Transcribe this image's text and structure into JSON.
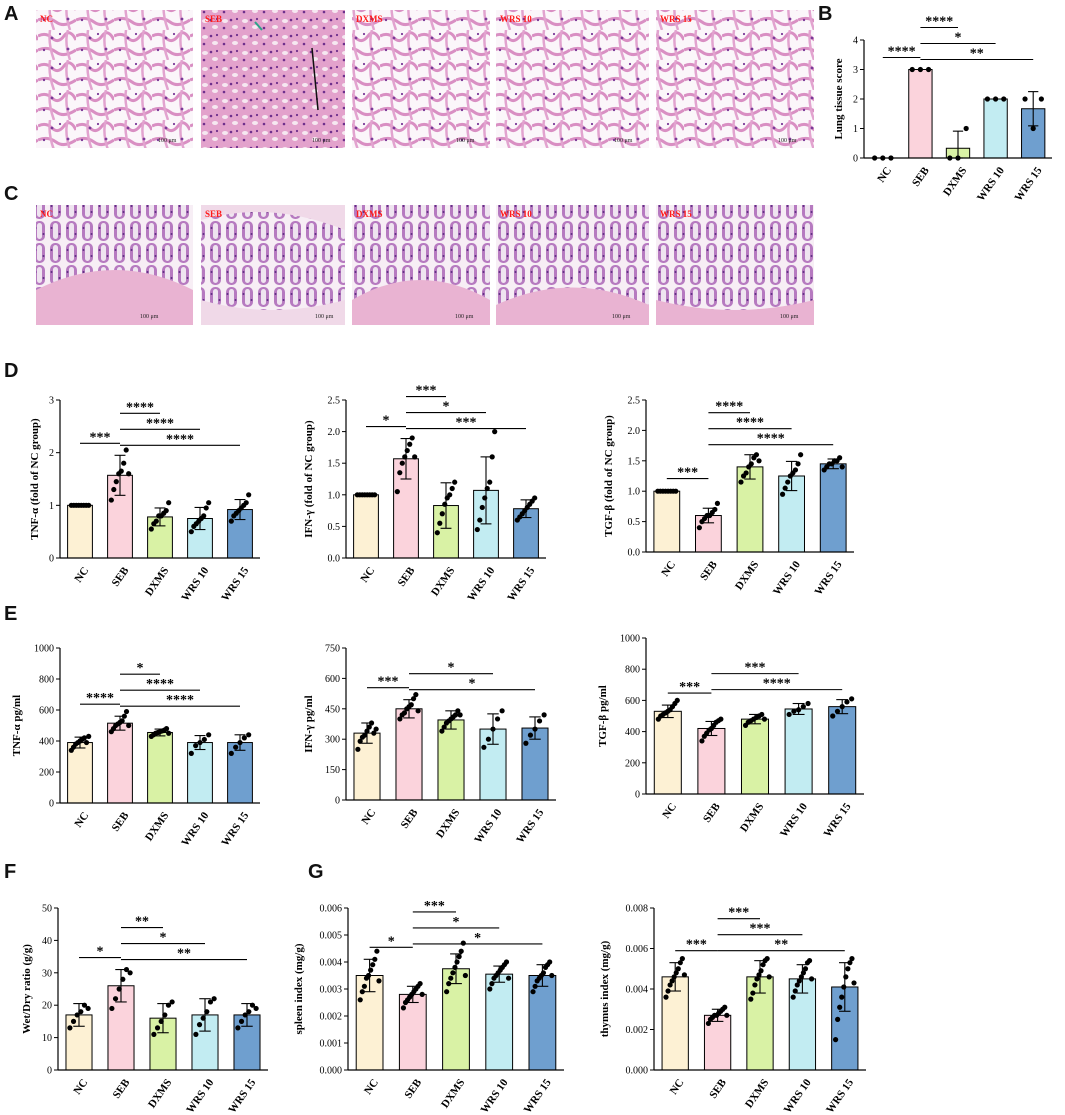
{
  "panel_labels": [
    "A",
    "B",
    "C",
    "D",
    "E",
    "F",
    "G"
  ],
  "micrographs": {
    "lung_labels": [
      "NC",
      "SEB",
      "DXMS",
      "WRS 10",
      "WRS 15"
    ],
    "colon_labels": [
      "NC",
      "SEB",
      "DXMS",
      "WRS 10",
      "WRS 15"
    ],
    "scale_text": "100 μm"
  },
  "colors": {
    "NC": "#fdf1d4",
    "SEB": "#fbd3dc",
    "DXMS": "#d9f2a5",
    "WRS 10": "#c2ecf2",
    "WRS 15": "#6f9fcf",
    "tissue": "#e7a9cf",
    "nuclei": "#8a3e9f"
  },
  "chart_data": [
    {
      "id": "B",
      "type": "bar",
      "categories": [
        "NC",
        "SEB",
        "DXMS",
        "WRS 10",
        "WRS 15"
      ],
      "values": [
        0,
        3,
        0.33,
        2,
        1.67
      ],
      "sd": [
        0,
        0,
        0.58,
        0,
        0.58
      ],
      "points": [
        [
          0,
          0,
          0
        ],
        [
          3,
          3,
          3
        ],
        [
          0,
          0,
          1
        ],
        [
          2,
          2,
          2
        ],
        [
          2,
          1,
          2
        ]
      ],
      "ylabel": "Lung tissue score",
      "ylim": [
        0,
        4
      ],
      "yticks": [
        0,
        1,
        2,
        3,
        4
      ],
      "ytick_labels": [
        "0",
        "1",
        "2",
        "3",
        "4"
      ],
      "significance": [
        {
          "from": "NC",
          "to": "SEB",
          "label": "****"
        },
        {
          "from": "SEB",
          "to": "DXMS",
          "label": "****"
        },
        {
          "from": "SEB",
          "to": "WRS 10",
          "label": "*"
        },
        {
          "from": "SEB",
          "to": "WRS 15",
          "label": "**"
        }
      ]
    },
    {
      "id": "D1",
      "type": "bar",
      "categories": [
        "NC",
        "SEB",
        "DXMS",
        "WRS 10",
        "WRS 15"
      ],
      "values": [
        1.0,
        1.57,
        0.78,
        0.75,
        0.92
      ],
      "sd": [
        0.02,
        0.38,
        0.17,
        0.21,
        0.19
      ],
      "points": [
        [
          1,
          1,
          1,
          1,
          1,
          1,
          1,
          1
        ],
        [
          1.1,
          1.3,
          1.45,
          1.6,
          1.65,
          1.8,
          2.05,
          1.6
        ],
        [
          0.55,
          0.65,
          0.7,
          0.8,
          0.8,
          0.85,
          0.9,
          1.05
        ],
        [
          0.5,
          0.6,
          0.65,
          0.7,
          0.75,
          0.8,
          0.95,
          1.05
        ],
        [
          0.7,
          0.8,
          0.85,
          0.9,
          0.95,
          1.0,
          1.05,
          1.2
        ]
      ],
      "ylabel": "TNF-α (fold of NC group)",
      "ylim": [
        0,
        3
      ],
      "yticks": [
        0,
        1,
        2,
        3
      ],
      "ytick_labels": [
        "0",
        "1",
        "2",
        "3"
      ],
      "significance": [
        {
          "from": "NC",
          "to": "SEB",
          "label": "***"
        },
        {
          "from": "SEB",
          "to": "DXMS",
          "label": "****"
        },
        {
          "from": "SEB",
          "to": "WRS 10",
          "label": "****"
        },
        {
          "from": "SEB",
          "to": "WRS 15",
          "label": "****"
        }
      ]
    },
    {
      "id": "D2",
      "type": "bar",
      "categories": [
        "NC",
        "SEB",
        "DXMS",
        "WRS 10",
        "WRS 15"
      ],
      "values": [
        1.0,
        1.57,
        0.83,
        1.07,
        0.78
      ],
      "sd": [
        0.01,
        0.32,
        0.36,
        0.53,
        0.14
      ],
      "points": [
        [
          1,
          1,
          1,
          1,
          1,
          1,
          1,
          1
        ],
        [
          1.05,
          1.35,
          1.5,
          1.6,
          1.7,
          1.8,
          1.9,
          1.6
        ],
        [
          0.4,
          0.55,
          0.7,
          0.85,
          0.95,
          1.0,
          1.1,
          1.2
        ],
        [
          0.45,
          0.6,
          0.8,
          0.95,
          1.1,
          1.2,
          1.6,
          2.0
        ],
        [
          0.6,
          0.65,
          0.7,
          0.75,
          0.8,
          0.85,
          0.9,
          0.95
        ]
      ],
      "ylabel": "IFN-γ (fold of NC group)",
      "ylim": [
        0,
        2.5
      ],
      "yticks": [
        0,
        0.5,
        1.0,
        1.5,
        2.0,
        2.5
      ],
      "ytick_labels": [
        "0.0",
        "0.5",
        "1.0",
        "1.5",
        "2.0",
        "2.5"
      ],
      "significance": [
        {
          "from": "NC",
          "to": "SEB",
          "label": "*"
        },
        {
          "from": "SEB",
          "to": "DXMS",
          "label": "***"
        },
        {
          "from": "SEB",
          "to": "WRS 10",
          "label": "*"
        },
        {
          "from": "SEB",
          "to": "WRS 15",
          "label": "***"
        }
      ]
    },
    {
      "id": "D3",
      "type": "bar",
      "categories": [
        "NC",
        "SEB",
        "DXMS",
        "WRS 10",
        "WRS 15"
      ],
      "values": [
        1.0,
        0.6,
        1.4,
        1.25,
        1.45
      ],
      "sd": [
        0.01,
        0.12,
        0.2,
        0.24,
        0.08
      ],
      "points": [
        [
          1,
          1,
          1,
          1,
          1,
          1,
          1,
          1
        ],
        [
          0.4,
          0.5,
          0.55,
          0.6,
          0.6,
          0.65,
          0.7,
          0.8
        ],
        [
          1.15,
          1.25,
          1.3,
          1.4,
          1.45,
          1.55,
          1.6,
          1.5
        ],
        [
          0.95,
          1.05,
          1.15,
          1.25,
          1.3,
          1.35,
          1.45,
          1.6
        ],
        [
          1.35,
          1.4,
          1.45,
          1.45,
          1.5,
          1.5,
          1.55,
          1.4
        ]
      ],
      "ylabel": "TGF-β (fold of NC group)",
      "ylim": [
        0,
        2.5
      ],
      "yticks": [
        0,
        0.5,
        1.0,
        1.5,
        2.0,
        2.5
      ],
      "ytick_labels": [
        "0.0",
        "0.5",
        "1.0",
        "1.5",
        "2.0",
        "2.5"
      ],
      "significance": [
        {
          "from": "NC",
          "to": "SEB",
          "label": "***"
        },
        {
          "from": "SEB",
          "to": "DXMS",
          "label": "****"
        },
        {
          "from": "SEB",
          "to": "WRS 10",
          "label": "****"
        },
        {
          "from": "SEB",
          "to": "WRS 15",
          "label": "****"
        }
      ]
    },
    {
      "id": "E1",
      "type": "bar",
      "categories": [
        "NC",
        "SEB",
        "DXMS",
        "WRS 10",
        "WRS 15"
      ],
      "values": [
        390,
        515,
        455,
        390,
        390
      ],
      "sd": [
        35,
        45,
        22,
        45,
        50
      ],
      "points": [
        [
          340,
          360,
          380,
          390,
          400,
          410,
          420,
          390,
          430
        ],
        [
          460,
          480,
          500,
          510,
          520,
          530,
          560,
          590,
          500
        ],
        [
          430,
          440,
          450,
          455,
          460,
          465,
          470,
          480,
          450
        ],
        [
          320,
          370,
          390,
          410,
          440
        ],
        [
          320,
          360,
          390,
          420,
          440
        ]
      ],
      "ylabel": "TNF-α pg/ml",
      "ylim": [
        0,
        1000
      ],
      "yticks": [
        0,
        200,
        400,
        600,
        800,
        1000
      ],
      "ytick_labels": [
        "0",
        "200",
        "400",
        "600",
        "800",
        "1000"
      ],
      "significance": [
        {
          "from": "NC",
          "to": "SEB",
          "label": "****"
        },
        {
          "from": "SEB",
          "to": "DXMS",
          "label": "*"
        },
        {
          "from": "SEB",
          "to": "WRS 10",
          "label": "****"
        },
        {
          "from": "SEB",
          "to": "WRS 15",
          "label": "****"
        }
      ]
    },
    {
      "id": "E2",
      "type": "bar",
      "categories": [
        "NC",
        "SEB",
        "DXMS",
        "WRS 10",
        "WRS 15"
      ],
      "values": [
        330,
        450,
        395,
        350,
        355
      ],
      "sd": [
        50,
        45,
        45,
        75,
        55
      ],
      "points": [
        [
          250,
          290,
          310,
          320,
          340,
          360,
          380,
          330,
          350
        ],
        [
          400,
          420,
          430,
          450,
          460,
          470,
          500,
          520,
          440
        ],
        [
          340,
          360,
          380,
          390,
          400,
          410,
          420,
          440,
          420
        ],
        [
          260,
          300,
          350,
          400,
          440
        ],
        [
          280,
          320,
          350,
          390,
          420
        ]
      ],
      "ylabel": "IFN-γ pg/ml",
      "ylim": [
        0,
        750
      ],
      "yticks": [
        0,
        150,
        300,
        450,
        600,
        750
      ],
      "ytick_labels": [
        "0",
        "150",
        "300",
        "450",
        "600",
        "750"
      ],
      "significance": [
        {
          "from": "NC",
          "to": "SEB",
          "label": "***"
        },
        {
          "from": "SEB",
          "to": "WRS 10",
          "label": "*"
        },
        {
          "from": "SEB",
          "to": "WRS 15",
          "label": "*"
        }
      ]
    },
    {
      "id": "E3",
      "type": "bar",
      "categories": [
        "NC",
        "SEB",
        "DXMS",
        "WRS 10",
        "WRS 15"
      ],
      "values": [
        530,
        420,
        480,
        545,
        560
      ],
      "sd": [
        40,
        45,
        30,
        35,
        45
      ],
      "points": [
        [
          480,
          500,
          510,
          520,
          530,
          540,
          560,
          580,
          600
        ],
        [
          340,
          370,
          390,
          410,
          420,
          440,
          460,
          470,
          480
        ],
        [
          440,
          460,
          470,
          480,
          490,
          500,
          510,
          480
        ],
        [
          510,
          530,
          540,
          560,
          580
        ],
        [
          500,
          530,
          560,
          590,
          610
        ]
      ],
      "ylabel": "TGF-β pg/ml",
      "ylim": [
        0,
        1000
      ],
      "yticks": [
        0,
        200,
        400,
        600,
        800,
        1000
      ],
      "ytick_labels": [
        "0",
        "200",
        "400",
        "600",
        "800",
        "1000"
      ],
      "significance": [
        {
          "from": "NC",
          "to": "SEB",
          "label": "***"
        },
        {
          "from": "SEB",
          "to": "WRS 10",
          "label": "***"
        },
        {
          "from": "SEB",
          "to": "WRS 15",
          "label": "****"
        }
      ]
    },
    {
      "id": "F",
      "type": "bar",
      "categories": [
        "NC",
        "SEB",
        "DXMS",
        "WRS 10",
        "WRS 15"
      ],
      "values": [
        17,
        26,
        16,
        17,
        17
      ],
      "sd": [
        3.5,
        5,
        4.5,
        5,
        3.5
      ],
      "points": [
        [
          13,
          15,
          17,
          18,
          20,
          19
        ],
        [
          19,
          22,
          25,
          28,
          31,
          30
        ],
        [
          11,
          13,
          15,
          17,
          20,
          21
        ],
        [
          11,
          14,
          16,
          18,
          21,
          22
        ],
        [
          13,
          15,
          17,
          18,
          20,
          19
        ]
      ],
      "ylabel": "Wet/Dry ratio (g/g)",
      "ylim": [
        0,
        50
      ],
      "yticks": [
        0,
        10,
        20,
        30,
        40,
        50
      ],
      "ytick_labels": [
        "0",
        "10",
        "20",
        "30",
        "40",
        "50"
      ],
      "significance": [
        {
          "from": "NC",
          "to": "SEB",
          "label": "*"
        },
        {
          "from": "SEB",
          "to": "DXMS",
          "label": "**"
        },
        {
          "from": "SEB",
          "to": "WRS 10",
          "label": "*"
        },
        {
          "from": "SEB",
          "to": "WRS 15",
          "label": "**"
        }
      ]
    },
    {
      "id": "G1",
      "type": "bar",
      "categories": [
        "NC",
        "SEB",
        "DXMS",
        "WRS 10",
        "WRS 15"
      ],
      "values": [
        0.0035,
        0.0028,
        0.00375,
        0.00355,
        0.0035
      ],
      "sd": [
        0.0006,
        0.0003,
        0.00055,
        0.0003,
        0.0004
      ],
      "points": [
        [
          0.0026,
          0.0029,
          0.0031,
          0.0034,
          0.0035,
          0.0037,
          0.0039,
          0.0041,
          0.0044,
          0.0033
        ],
        [
          0.0023,
          0.0025,
          0.0026,
          0.0027,
          0.0028,
          0.0029,
          0.003,
          0.0031,
          0.0032,
          0.0028
        ],
        [
          0.0029,
          0.0032,
          0.0034,
          0.0036,
          0.0038,
          0.004,
          0.0042,
          0.0044,
          0.0047,
          0.0035
        ],
        [
          0.003,
          0.0032,
          0.0034,
          0.0035,
          0.0036,
          0.0037,
          0.0038,
          0.0039,
          0.004,
          0.0034
        ],
        [
          0.0029,
          0.0031,
          0.0033,
          0.0034,
          0.0035,
          0.0036,
          0.0038,
          0.0039,
          0.004,
          0.0035
        ]
      ],
      "ylabel": "spleen index (mg/g)",
      "ylim": [
        0,
        0.006
      ],
      "yticks": [
        0,
        0.001,
        0.002,
        0.003,
        0.004,
        0.005,
        0.006
      ],
      "ytick_labels": [
        "0.000",
        "0.001",
        "0.002",
        "0.003",
        "0.004",
        "0.005",
        "0.006"
      ],
      "significance": [
        {
          "from": "NC",
          "to": "SEB",
          "label": "*"
        },
        {
          "from": "SEB",
          "to": "DXMS",
          "label": "***"
        },
        {
          "from": "SEB",
          "to": "WRS 10",
          "label": "*"
        },
        {
          "from": "SEB",
          "to": "WRS 15",
          "label": "*"
        }
      ]
    },
    {
      "id": "G2",
      "type": "bar",
      "categories": [
        "NC",
        "SEB",
        "DXMS",
        "WRS 10",
        "WRS 15"
      ],
      "values": [
        0.0046,
        0.0027,
        0.0046,
        0.0045,
        0.0041
      ],
      "sd": [
        0.0007,
        0.0003,
        0.0008,
        0.0007,
        0.0012
      ],
      "points": [
        [
          0.0036,
          0.0039,
          0.0042,
          0.0044,
          0.0046,
          0.0048,
          0.005,
          0.0053,
          0.0055,
          0.0047
        ],
        [
          0.0023,
          0.0025,
          0.0026,
          0.0027,
          0.0027,
          0.0028,
          0.0029,
          0.003,
          0.0031,
          0.0027
        ],
        [
          0.0035,
          0.0038,
          0.0042,
          0.0045,
          0.0047,
          0.0049,
          0.0052,
          0.0054,
          0.0055,
          0.0046
        ],
        [
          0.0036,
          0.0039,
          0.0042,
          0.0044,
          0.0046,
          0.0048,
          0.005,
          0.0053,
          0.0054,
          0.0045
        ],
        [
          0.0015,
          0.0025,
          0.0031,
          0.0036,
          0.0041,
          0.0046,
          0.005,
          0.0053,
          0.0055,
          0.0043
        ]
      ],
      "ylabel": "thymus index (mg/g)",
      "ylim": [
        0,
        0.008
      ],
      "yticks": [
        0,
        0.002,
        0.004,
        0.006,
        0.008
      ],
      "ytick_labels": [
        "0.000",
        "0.002",
        "0.004",
        "0.006",
        "0.008"
      ],
      "significance": [
        {
          "from": "NC",
          "to": "SEB",
          "label": "***"
        },
        {
          "from": "SEB",
          "to": "DXMS",
          "label": "***"
        },
        {
          "from": "SEB",
          "to": "WRS 10",
          "label": "***"
        },
        {
          "from": "SEB",
          "to": "WRS 15",
          "label": "**"
        }
      ]
    }
  ]
}
